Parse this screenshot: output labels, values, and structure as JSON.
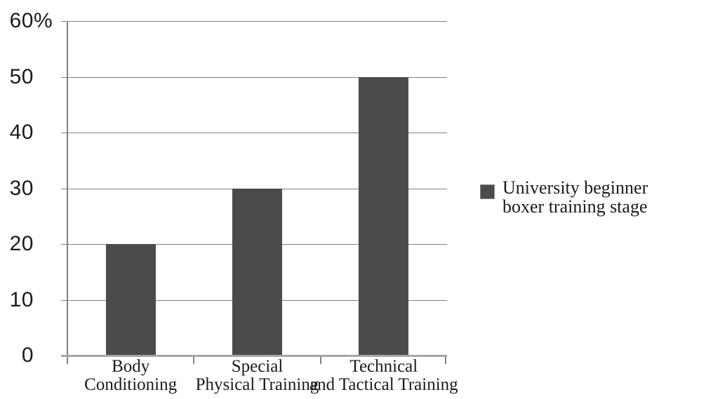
{
  "chart_data": {
    "type": "bar",
    "title": "",
    "xlabel": "",
    "ylabel": "",
    "categories": [
      "Body\nConditioning",
      "Special\nPhysical Training",
      "Technical\nand Tactical Training"
    ],
    "values": [
      20,
      30,
      50
    ],
    "ylim": [
      0,
      60
    ],
    "ytick_step": 10,
    "yticks": [
      {
        "value": 60,
        "label": "60",
        "suffix": "%"
      },
      {
        "value": 50,
        "label": "50",
        "suffix": ""
      },
      {
        "value": 40,
        "label": "40",
        "suffix": ""
      },
      {
        "value": 30,
        "label": "30",
        "suffix": ""
      },
      {
        "value": 20,
        "label": "20",
        "suffix": ""
      },
      {
        "value": 10,
        "label": "10",
        "suffix": ""
      },
      {
        "value": 0,
        "label": "0",
        "suffix": ""
      }
    ],
    "grid": true,
    "legend_position": "right",
    "legend": {
      "label": "University beginner\nboxer training stage"
    },
    "colors": {
      "bar": "#4B4B4B",
      "gridline": "#808080",
      "axis": "#808080",
      "baseline": "#A6A6A6",
      "text": "#1B1B1B",
      "background": "#FFFFFF"
    }
  }
}
